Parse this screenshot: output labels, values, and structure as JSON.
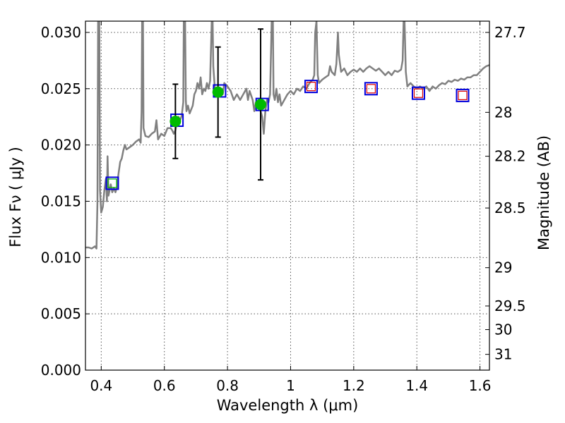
{
  "chart_data": {
    "type": "scatter",
    "xlabel": "Wavelength  λ (μm)",
    "ylabel": "Flux  Fν  ( μJy )",
    "y2label": "Magnitude (AB)",
    "xlim": [
      0.35,
      1.63
    ],
    "ylim": [
      0.0,
      0.031
    ],
    "grid": true,
    "x_ticks": [
      0.4,
      0.6,
      0.8,
      1.0,
      1.2,
      1.4,
      1.6
    ],
    "x_tick_labels": [
      "0.4",
      "0.6",
      "0.8",
      "1",
      "1.2",
      "1.4",
      "1.6"
    ],
    "y_ticks": [
      0.0,
      0.005,
      0.01,
      0.015,
      0.02,
      0.025,
      0.03
    ],
    "y_tick_labels": [
      "0.000",
      "0.005",
      "0.010",
      "0.015",
      "0.020",
      "0.025",
      "0.030"
    ],
    "y2_ticks": [
      {
        "label": "27.7",
        "flux": 0.03
      },
      {
        "label": "28",
        "flux": 0.0229
      },
      {
        "label": "28.2",
        "flux": 0.019
      },
      {
        "label": "28.5",
        "flux": 0.0144
      },
      {
        "label": "29",
        "flux": 0.0091
      },
      {
        "label": "29.5",
        "flux": 0.0057
      },
      {
        "label": "30",
        "flux": 0.0036
      },
      {
        "label": "31",
        "flux": 0.0014
      }
    ],
    "colors": {
      "spectrum": "#808080",
      "measured": "#00bb00",
      "model_box": "#0000dd",
      "red_box": "#dd0000",
      "error_bar": "#000000",
      "axis": "#000000"
    },
    "series": [
      {
        "kind": "spectrum",
        "points": [
          [
            0.35,
            0.0109
          ],
          [
            0.36,
            0.0109
          ],
          [
            0.37,
            0.0108
          ],
          [
            0.38,
            0.011
          ],
          [
            0.385,
            0.0108
          ],
          [
            0.388,
            0.015
          ],
          [
            0.39,
            0.031
          ],
          [
            0.392,
            0.035
          ],
          [
            0.394,
            0.03
          ],
          [
            0.396,
            0.016
          ],
          [
            0.4,
            0.014
          ],
          [
            0.405,
            0.0145
          ],
          [
            0.41,
            0.016
          ],
          [
            0.415,
            0.017
          ],
          [
            0.418,
            0.015
          ],
          [
            0.42,
            0.019
          ],
          [
            0.423,
            0.0155
          ],
          [
            0.43,
            0.0165
          ],
          [
            0.435,
            0.0158
          ],
          [
            0.44,
            0.0162
          ],
          [
            0.445,
            0.0158
          ],
          [
            0.45,
            0.0163
          ],
          [
            0.455,
            0.0175
          ],
          [
            0.46,
            0.0185
          ],
          [
            0.465,
            0.0188
          ],
          [
            0.47,
            0.0195
          ],
          [
            0.475,
            0.02
          ],
          [
            0.48,
            0.0196
          ],
          [
            0.49,
            0.0198
          ],
          [
            0.5,
            0.02
          ],
          [
            0.51,
            0.0203
          ],
          [
            0.52,
            0.0205
          ],
          [
            0.525,
            0.0202
          ],
          [
            0.528,
            0.023
          ],
          [
            0.53,
            0.033
          ],
          [
            0.532,
            0.033
          ],
          [
            0.534,
            0.0215
          ],
          [
            0.54,
            0.0208
          ],
          [
            0.55,
            0.0207
          ],
          [
            0.56,
            0.021
          ],
          [
            0.57,
            0.0212
          ],
          [
            0.575,
            0.0222
          ],
          [
            0.58,
            0.0205
          ],
          [
            0.59,
            0.021
          ],
          [
            0.6,
            0.0208
          ],
          [
            0.61,
            0.0215
          ],
          [
            0.62,
            0.0215
          ],
          [
            0.625,
            0.0213
          ],
          [
            0.63,
            0.021
          ],
          [
            0.635,
            0.0213
          ],
          [
            0.64,
            0.022
          ],
          [
            0.645,
            0.0225
          ],
          [
            0.65,
            0.0222
          ],
          [
            0.655,
            0.0226
          ],
          [
            0.66,
            0.0238
          ],
          [
            0.662,
            0.0325
          ],
          [
            0.665,
            0.033
          ],
          [
            0.668,
            0.024
          ],
          [
            0.67,
            0.023
          ],
          [
            0.675,
            0.0235
          ],
          [
            0.68,
            0.0228
          ],
          [
            0.69,
            0.0235
          ],
          [
            0.695,
            0.0245
          ],
          [
            0.7,
            0.0248
          ],
          [
            0.705,
            0.0255
          ],
          [
            0.71,
            0.025
          ],
          [
            0.715,
            0.026
          ],
          [
            0.72,
            0.0245
          ],
          [
            0.725,
            0.025
          ],
          [
            0.73,
            0.0248
          ],
          [
            0.735,
            0.0255
          ],
          [
            0.74,
            0.025
          ],
          [
            0.745,
            0.0257
          ],
          [
            0.75,
            0.031
          ],
          [
            0.752,
            0.033
          ],
          [
            0.755,
            0.027
          ],
          [
            0.76,
            0.025
          ],
          [
            0.765,
            0.0245
          ],
          [
            0.77,
            0.025
          ],
          [
            0.775,
            0.0248
          ],
          [
            0.78,
            0.025
          ],
          [
            0.785,
            0.0245
          ],
          [
            0.79,
            0.0255
          ],
          [
            0.8,
            0.0252
          ],
          [
            0.81,
            0.0248
          ],
          [
            0.82,
            0.024
          ],
          [
            0.83,
            0.0245
          ],
          [
            0.84,
            0.024
          ],
          [
            0.85,
            0.0245
          ],
          [
            0.86,
            0.025
          ],
          [
            0.865,
            0.024
          ],
          [
            0.87,
            0.0248
          ],
          [
            0.88,
            0.024
          ],
          [
            0.885,
            0.023
          ],
          [
            0.89,
            0.0238
          ],
          [
            0.895,
            0.0235
          ],
          [
            0.9,
            0.0232
          ],
          [
            0.905,
            0.023
          ],
          [
            0.91,
            0.0225
          ],
          [
            0.915,
            0.021
          ],
          [
            0.92,
            0.023
          ],
          [
            0.925,
            0.024
          ],
          [
            0.93,
            0.0238
          ],
          [
            0.935,
            0.0245
          ],
          [
            0.94,
            0.031
          ],
          [
            0.943,
            0.034
          ],
          [
            0.946,
            0.0245
          ],
          [
            0.95,
            0.024
          ],
          [
            0.955,
            0.025
          ],
          [
            0.96,
            0.0238
          ],
          [
            0.965,
            0.0245
          ],
          [
            0.97,
            0.0235
          ],
          [
            0.98,
            0.024
          ],
          [
            0.99,
            0.0245
          ],
          [
            1.0,
            0.0248
          ],
          [
            1.01,
            0.0245
          ],
          [
            1.02,
            0.025
          ],
          [
            1.03,
            0.0248
          ],
          [
            1.04,
            0.0252
          ],
          [
            1.05,
            0.025
          ],
          [
            1.06,
            0.0255
          ],
          [
            1.07,
            0.0258
          ],
          [
            1.075,
            0.0262
          ],
          [
            1.078,
            0.03
          ],
          [
            1.082,
            0.031
          ],
          [
            1.086,
            0.0262
          ],
          [
            1.09,
            0.0255
          ],
          [
            1.1,
            0.0258
          ],
          [
            1.11,
            0.026
          ],
          [
            1.12,
            0.0262
          ],
          [
            1.125,
            0.027
          ],
          [
            1.13,
            0.0265
          ],
          [
            1.14,
            0.0262
          ],
          [
            1.145,
            0.0272
          ],
          [
            1.15,
            0.03
          ],
          [
            1.153,
            0.028
          ],
          [
            1.16,
            0.0265
          ],
          [
            1.17,
            0.0268
          ],
          [
            1.18,
            0.0262
          ],
          [
            1.19,
            0.0265
          ],
          [
            1.2,
            0.0267
          ],
          [
            1.21,
            0.0265
          ],
          [
            1.22,
            0.0268
          ],
          [
            1.23,
            0.0265
          ],
          [
            1.24,
            0.0268
          ],
          [
            1.25,
            0.027
          ],
          [
            1.26,
            0.0268
          ],
          [
            1.27,
            0.0266
          ],
          [
            1.28,
            0.0268
          ],
          [
            1.29,
            0.0265
          ],
          [
            1.3,
            0.0262
          ],
          [
            1.31,
            0.0265
          ],
          [
            1.32,
            0.0262
          ],
          [
            1.33,
            0.0266
          ],
          [
            1.34,
            0.0265
          ],
          [
            1.35,
            0.0267
          ],
          [
            1.355,
            0.0275
          ],
          [
            1.358,
            0.031
          ],
          [
            1.361,
            0.031
          ],
          [
            1.365,
            0.0265
          ],
          [
            1.37,
            0.0252
          ],
          [
            1.38,
            0.0255
          ],
          [
            1.39,
            0.0252
          ],
          [
            1.4,
            0.025
          ],
          [
            1.41,
            0.0252
          ],
          [
            1.42,
            0.025
          ],
          [
            1.43,
            0.0252
          ],
          [
            1.44,
            0.0248
          ],
          [
            1.45,
            0.0252
          ],
          [
            1.46,
            0.025
          ],
          [
            1.47,
            0.0253
          ],
          [
            1.48,
            0.0255
          ],
          [
            1.49,
            0.0254
          ],
          [
            1.5,
            0.0257
          ],
          [
            1.51,
            0.0256
          ],
          [
            1.52,
            0.0258
          ],
          [
            1.53,
            0.0257
          ],
          [
            1.54,
            0.0259
          ],
          [
            1.55,
            0.0258
          ],
          [
            1.56,
            0.026
          ],
          [
            1.57,
            0.026
          ],
          [
            1.58,
            0.0262
          ],
          [
            1.59,
            0.0262
          ],
          [
            1.6,
            0.0265
          ],
          [
            1.61,
            0.0268
          ],
          [
            1.62,
            0.027
          ],
          [
            1.63,
            0.0271
          ]
        ]
      },
      {
        "kind": "model_boxes",
        "points": [
          {
            "x": 0.435,
            "y": 0.0166,
            "inner": "green"
          },
          {
            "x": 0.64,
            "y": 0.0222,
            "inner": "none"
          },
          {
            "x": 0.775,
            "y": 0.0248,
            "inner": "none"
          },
          {
            "x": 0.91,
            "y": 0.0236,
            "inner": "none"
          },
          {
            "x": 1.065,
            "y": 0.0252,
            "inner": "red"
          },
          {
            "x": 1.255,
            "y": 0.025,
            "inner": "red"
          },
          {
            "x": 1.405,
            "y": 0.0246,
            "inner": "red"
          },
          {
            "x": 1.545,
            "y": 0.0244,
            "inner": "red"
          }
        ]
      },
      {
        "kind": "measured",
        "points": [
          {
            "x": 0.635,
            "y": 0.0221,
            "err": 0.0033
          },
          {
            "x": 0.77,
            "y": 0.0247,
            "err": 0.004
          },
          {
            "x": 0.905,
            "y": 0.0236,
            "err": 0.0067
          }
        ]
      }
    ]
  }
}
